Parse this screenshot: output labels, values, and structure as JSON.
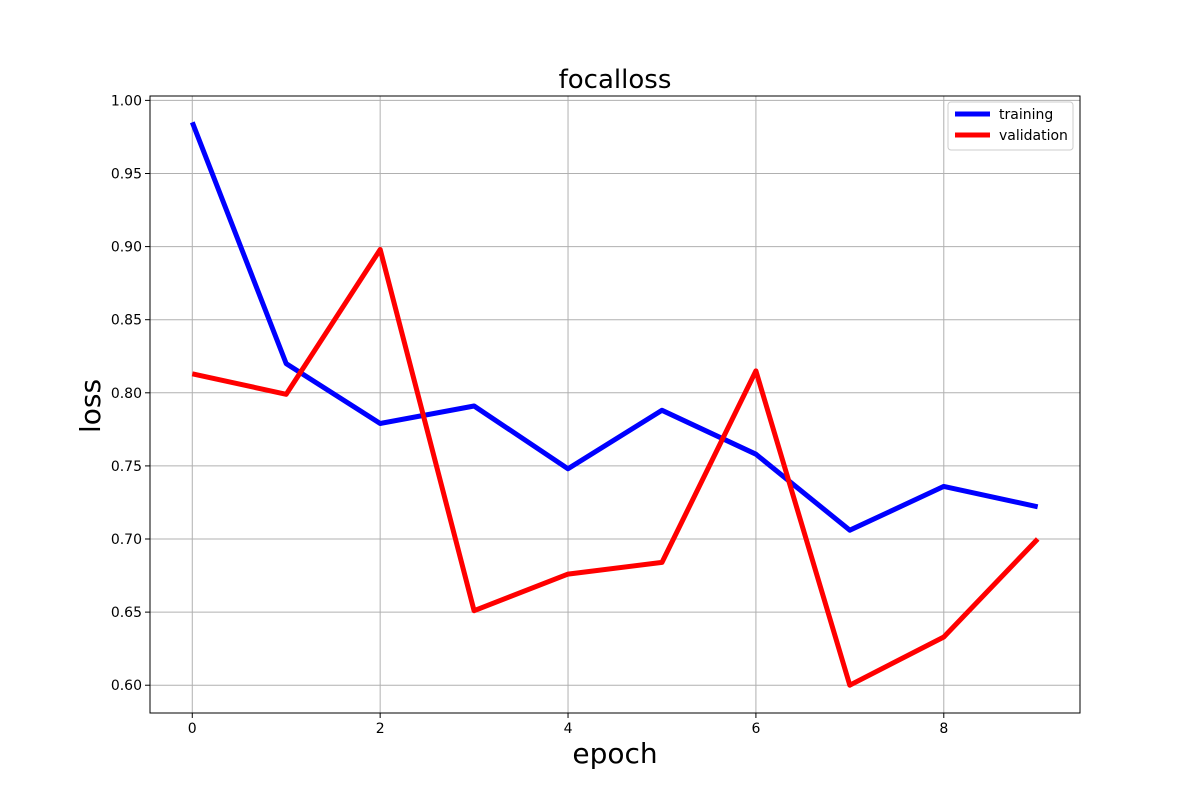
{
  "chart_data": {
    "type": "line",
    "title": "focalloss",
    "xlabel": "epoch",
    "ylabel": "loss",
    "x": [
      0,
      1,
      2,
      3,
      4,
      5,
      6,
      7,
      8,
      9
    ],
    "xlim": [
      -0.45,
      9.45
    ],
    "ylim": [
      0.581,
      1.003
    ],
    "xticks": [
      0,
      2,
      4,
      6,
      8
    ],
    "xtick_labels": [
      "0",
      "2",
      "4",
      "6",
      "8"
    ],
    "yticks": [
      0.6,
      0.65,
      0.7,
      0.75,
      0.8,
      0.85,
      0.9,
      0.95,
      1.0
    ],
    "ytick_labels": [
      "0.60",
      "0.65",
      "0.70",
      "0.75",
      "0.80",
      "0.85",
      "0.90",
      "0.95",
      "1.00"
    ],
    "grid": true,
    "legend_position": "top-right",
    "series": [
      {
        "name": "training",
        "color": "#0000ff",
        "values": [
          0.985,
          0.82,
          0.779,
          0.791,
          0.748,
          0.788,
          0.758,
          0.706,
          0.736,
          0.722
        ]
      },
      {
        "name": "validation",
        "color": "#ff0000",
        "values": [
          0.813,
          0.799,
          0.898,
          0.651,
          0.676,
          0.684,
          0.815,
          0.6,
          0.633,
          0.7
        ]
      }
    ]
  }
}
